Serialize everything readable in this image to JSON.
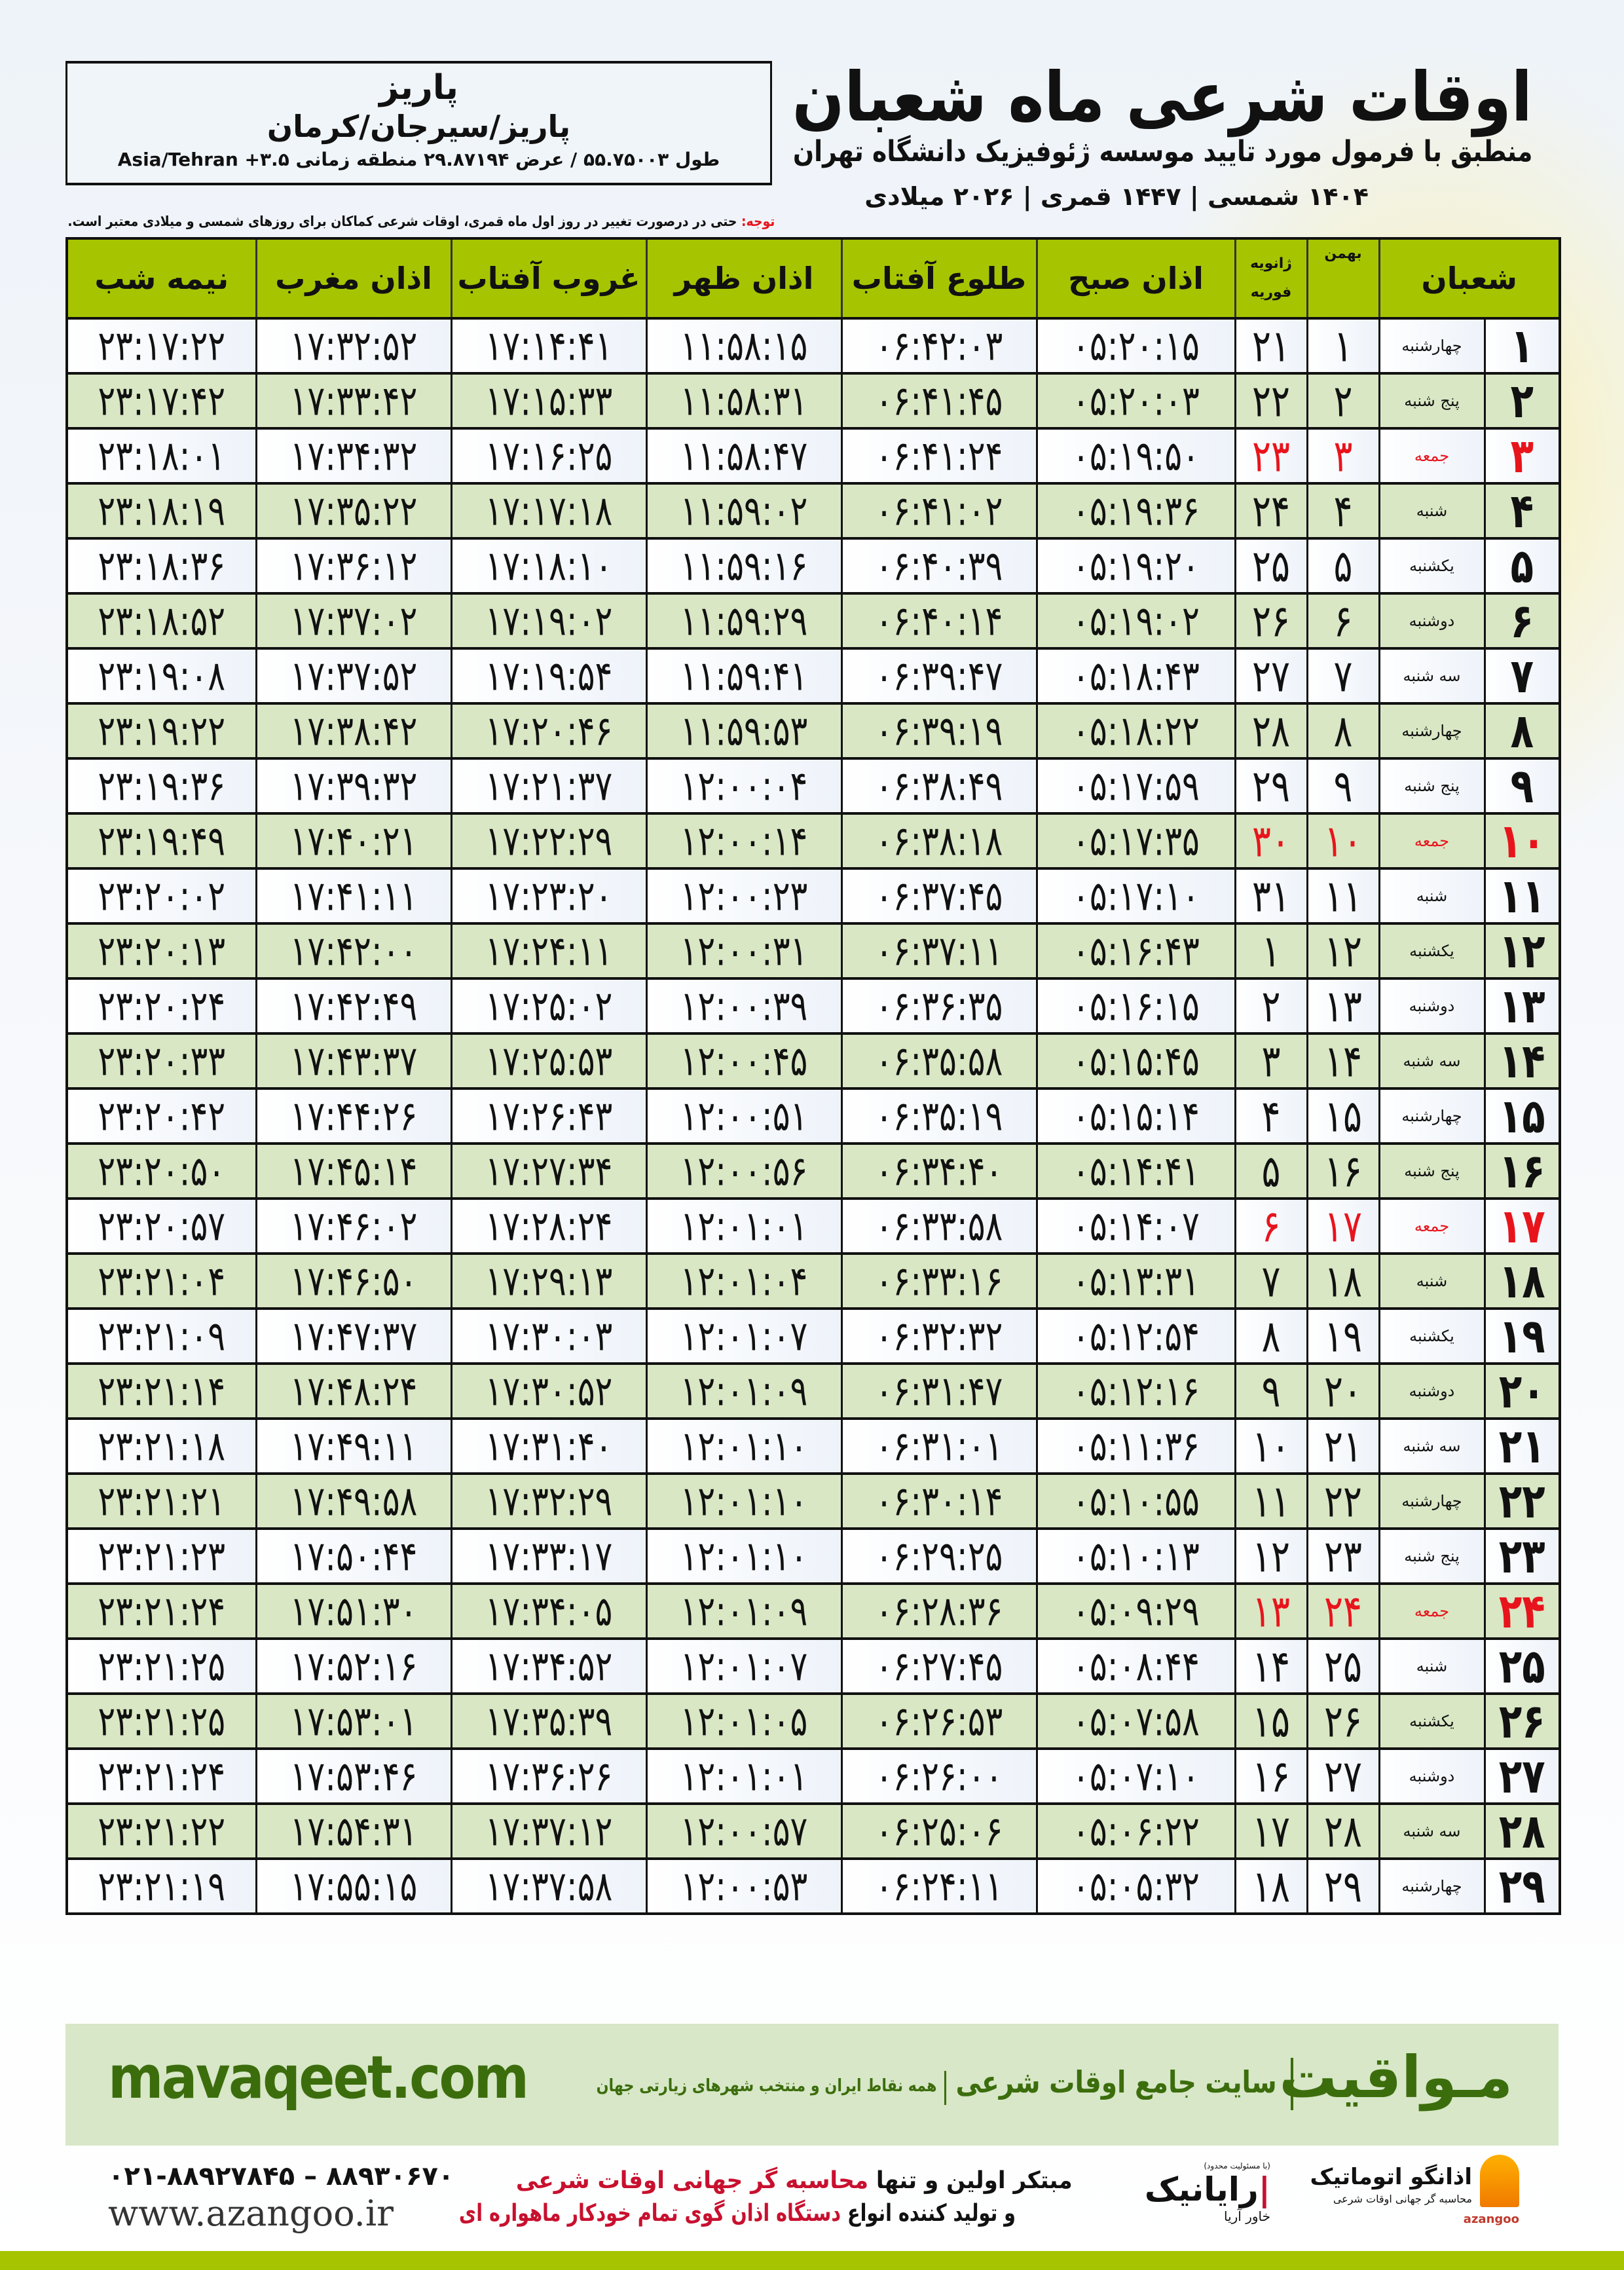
{
  "header": {
    "title": "اوقات شرعی ماه شعبان",
    "subtitle": "منطبق با فرمول مورد تایید موسسه ژئوفیزیک دانشگاه تهران",
    "dates": "۱۴۰۴ شمسی | ۱۴۴۷ قمری | ۲۰۲۶ میلادی"
  },
  "location": {
    "city": "پاریز",
    "region": "پاریز/سیرجان/کرمان",
    "coords": "طول ۵۵.۷۵۰۰۳ / عرض ۲۹.۸۷۱۹۴ منطقه زمانی ۳.۵+ Asia/Tehran"
  },
  "note": {
    "label": "توجه:",
    "text": " حتی در درصورت تغییر در روز اول ماه قمری، اوقات شرعی کماکان برای روزهای شمسی و میلادی معتبر است."
  },
  "colors": {
    "header_green": "#a6c500",
    "row_green": "#d9e7c4",
    "friday_red": "#e8141c",
    "brand_green": "#3c6d0d"
  },
  "table": {
    "friday_label": "جمعه",
    "headers": {
      "shaban": "شعبان",
      "bahman": "بهمن",
      "january": "ژانویه",
      "february": "فوریه",
      "fajr": "اذان صبح",
      "sunrise": "طلوع آفتاب",
      "dhuhr": "اذان ظهر",
      "sunset": "غروب آفتاب",
      "maghrib": "اذان مغرب",
      "midnight": "نیمه شب"
    },
    "rows": [
      [
        "۱",
        "چهارشنبه",
        "۱",
        "۲۱",
        "۰۵:۲۰:۱۵",
        "۰۶:۴۲:۰۳",
        "۱۱:۵۸:۱۵",
        "۱۷:۱۴:۴۱",
        "۱۷:۳۲:۵۲",
        "۲۳:۱۷:۲۲"
      ],
      [
        "۲",
        "پنج شنبه",
        "۲",
        "۲۲",
        "۰۵:۲۰:۰۳",
        "۰۶:۴۱:۴۵",
        "۱۱:۵۸:۳۱",
        "۱۷:۱۵:۳۳",
        "۱۷:۳۳:۴۲",
        "۲۳:۱۷:۴۲"
      ],
      [
        "۳",
        "جمعه",
        "۳",
        "۲۳",
        "۰۵:۱۹:۵۰",
        "۰۶:۴۱:۲۴",
        "۱۱:۵۸:۴۷",
        "۱۷:۱۶:۲۵",
        "۱۷:۳۴:۳۲",
        "۲۳:۱۸:۰۱"
      ],
      [
        "۴",
        "شنبه",
        "۴",
        "۲۴",
        "۰۵:۱۹:۳۶",
        "۰۶:۴۱:۰۲",
        "۱۱:۵۹:۰۲",
        "۱۷:۱۷:۱۸",
        "۱۷:۳۵:۲۲",
        "۲۳:۱۸:۱۹"
      ],
      [
        "۵",
        "یکشنبه",
        "۵",
        "۲۵",
        "۰۵:۱۹:۲۰",
        "۰۶:۴۰:۳۹",
        "۱۱:۵۹:۱۶",
        "۱۷:۱۸:۱۰",
        "۱۷:۳۶:۱۲",
        "۲۳:۱۸:۳۶"
      ],
      [
        "۶",
        "دوشنبه",
        "۶",
        "۲۶",
        "۰۵:۱۹:۰۲",
        "۰۶:۴۰:۱۴",
        "۱۱:۵۹:۲۹",
        "۱۷:۱۹:۰۲",
        "۱۷:۳۷:۰۲",
        "۲۳:۱۸:۵۲"
      ],
      [
        "۷",
        "سه شنبه",
        "۷",
        "۲۷",
        "۰۵:۱۸:۴۳",
        "۰۶:۳۹:۴۷",
        "۱۱:۵۹:۴۱",
        "۱۷:۱۹:۵۴",
        "۱۷:۳۷:۵۲",
        "۲۳:۱۹:۰۸"
      ],
      [
        "۸",
        "چهارشنبه",
        "۸",
        "۲۸",
        "۰۵:۱۸:۲۲",
        "۰۶:۳۹:۱۹",
        "۱۱:۵۹:۵۳",
        "۱۷:۲۰:۴۶",
        "۱۷:۳۸:۴۲",
        "۲۳:۱۹:۲۲"
      ],
      [
        "۹",
        "پنج شنبه",
        "۹",
        "۲۹",
        "۰۵:۱۷:۵۹",
        "۰۶:۳۸:۴۹",
        "۱۲:۰۰:۰۴",
        "۱۷:۲۱:۳۷",
        "۱۷:۳۹:۳۲",
        "۲۳:۱۹:۳۶"
      ],
      [
        "۱۰",
        "جمعه",
        "۱۰",
        "۳۰",
        "۰۵:۱۷:۳۵",
        "۰۶:۳۸:۱۸",
        "۱۲:۰۰:۱۴",
        "۱۷:۲۲:۲۹",
        "۱۷:۴۰:۲۱",
        "۲۳:۱۹:۴۹"
      ],
      [
        "۱۱",
        "شنبه",
        "۱۱",
        "۳۱",
        "۰۵:۱۷:۱۰",
        "۰۶:۳۷:۴۵",
        "۱۲:۰۰:۲۳",
        "۱۷:۲۳:۲۰",
        "۱۷:۴۱:۱۱",
        "۲۳:۲۰:۰۲"
      ],
      [
        "۱۲",
        "یکشنبه",
        "۱۲",
        "۱",
        "۰۵:۱۶:۴۳",
        "۰۶:۳۷:۱۱",
        "۱۲:۰۰:۳۱",
        "۱۷:۲۴:۱۱",
        "۱۷:۴۲:۰۰",
        "۲۳:۲۰:۱۳"
      ],
      [
        "۱۳",
        "دوشنبه",
        "۱۳",
        "۲",
        "۰۵:۱۶:۱۵",
        "۰۶:۳۶:۳۵",
        "۱۲:۰۰:۳۹",
        "۱۷:۲۵:۰۲",
        "۱۷:۴۲:۴۹",
        "۲۳:۲۰:۲۴"
      ],
      [
        "۱۴",
        "سه شنبه",
        "۱۴",
        "۳",
        "۰۵:۱۵:۴۵",
        "۰۶:۳۵:۵۸",
        "۱۲:۰۰:۴۵",
        "۱۷:۲۵:۵۳",
        "۱۷:۴۳:۳۷",
        "۲۳:۲۰:۳۳"
      ],
      [
        "۱۵",
        "چهارشنبه",
        "۱۵",
        "۴",
        "۰۵:۱۵:۱۴",
        "۰۶:۳۵:۱۹",
        "۱۲:۰۰:۵۱",
        "۱۷:۲۶:۴۳",
        "۱۷:۴۴:۲۶",
        "۲۳:۲۰:۴۲"
      ],
      [
        "۱۶",
        "پنج شنبه",
        "۱۶",
        "۵",
        "۰۵:۱۴:۴۱",
        "۰۶:۳۴:۴۰",
        "۱۲:۰۰:۵۶",
        "۱۷:۲۷:۳۴",
        "۱۷:۴۵:۱۴",
        "۲۳:۲۰:۵۰"
      ],
      [
        "۱۷",
        "جمعه",
        "۱۷",
        "۶",
        "۰۵:۱۴:۰۷",
        "۰۶:۳۳:۵۸",
        "۱۲:۰۱:۰۱",
        "۱۷:۲۸:۲۴",
        "۱۷:۴۶:۰۲",
        "۲۳:۲۰:۵۷"
      ],
      [
        "۱۸",
        "شنبه",
        "۱۸",
        "۷",
        "۰۵:۱۳:۳۱",
        "۰۶:۳۳:۱۶",
        "۱۲:۰۱:۰۴",
        "۱۷:۲۹:۱۳",
        "۱۷:۴۶:۵۰",
        "۲۳:۲۱:۰۴"
      ],
      [
        "۱۹",
        "یکشنبه",
        "۱۹",
        "۸",
        "۰۵:۱۲:۵۴",
        "۰۶:۳۲:۳۲",
        "۱۲:۰۱:۰۷",
        "۱۷:۳۰:۰۳",
        "۱۷:۴۷:۳۷",
        "۲۳:۲۱:۰۹"
      ],
      [
        "۲۰",
        "دوشنبه",
        "۲۰",
        "۹",
        "۰۵:۱۲:۱۶",
        "۰۶:۳۱:۴۷",
        "۱۲:۰۱:۰۹",
        "۱۷:۳۰:۵۲",
        "۱۷:۴۸:۲۴",
        "۲۳:۲۱:۱۴"
      ],
      [
        "۲۱",
        "سه شنبه",
        "۲۱",
        "۱۰",
        "۰۵:۱۱:۳۶",
        "۰۶:۳۱:۰۱",
        "۱۲:۰۱:۱۰",
        "۱۷:۳۱:۴۰",
        "۱۷:۴۹:۱۱",
        "۲۳:۲۱:۱۸"
      ],
      [
        "۲۲",
        "چهارشنبه",
        "۲۲",
        "۱۱",
        "۰۵:۱۰:۵۵",
        "۰۶:۳۰:۱۴",
        "۱۲:۰۱:۱۰",
        "۱۷:۳۲:۲۹",
        "۱۷:۴۹:۵۸",
        "۲۳:۲۱:۲۱"
      ],
      [
        "۲۳",
        "پنج شنبه",
        "۲۳",
        "۱۲",
        "۰۵:۱۰:۱۳",
        "۰۶:۲۹:۲۵",
        "۱۲:۰۱:۱۰",
        "۱۷:۳۳:۱۷",
        "۱۷:۵۰:۴۴",
        "۲۳:۲۱:۲۳"
      ],
      [
        "۲۴",
        "جمعه",
        "۲۴",
        "۱۳",
        "۰۵:۰۹:۲۹",
        "۰۶:۲۸:۳۶",
        "۱۲:۰۱:۰۹",
        "۱۷:۳۴:۰۵",
        "۱۷:۵۱:۳۰",
        "۲۳:۲۱:۲۴"
      ],
      [
        "۲۵",
        "شنبه",
        "۲۵",
        "۱۴",
        "۰۵:۰۸:۴۴",
        "۰۶:۲۷:۴۵",
        "۱۲:۰۱:۰۷",
        "۱۷:۳۴:۵۲",
        "۱۷:۵۲:۱۶",
        "۲۳:۲۱:۲۵"
      ],
      [
        "۲۶",
        "یکشنبه",
        "۲۶",
        "۱۵",
        "۰۵:۰۷:۵۸",
        "۰۶:۲۶:۵۳",
        "۱۲:۰۱:۰۵",
        "۱۷:۳۵:۳۹",
        "۱۷:۵۳:۰۱",
        "۲۳:۲۱:۲۵"
      ],
      [
        "۲۷",
        "دوشنبه",
        "۲۷",
        "۱۶",
        "۰۵:۰۷:۱۰",
        "۰۶:۲۶:۰۰",
        "۱۲:۰۱:۰۱",
        "۱۷:۳۶:۲۶",
        "۱۷:۵۳:۴۶",
        "۲۳:۲۱:۲۴"
      ],
      [
        "۲۸",
        "سه شنبه",
        "۲۸",
        "۱۷",
        "۰۵:۰۶:۲۲",
        "۰۶:۲۵:۰۶",
        "۱۲:۰۰:۵۷",
        "۱۷:۳۷:۱۲",
        "۱۷:۵۴:۳۱",
        "۲۳:۲۱:۲۲"
      ],
      [
        "۲۹",
        "چهارشنبه",
        "۲۹",
        "۱۸",
        "۰۵:۰۵:۳۲",
        "۰۶:۲۴:۱۱",
        "۱۲:۰۰:۵۳",
        "۱۷:۳۷:۵۸",
        "۱۷:۵۵:۱۵",
        "۲۳:۲۱:۱۹"
      ]
    ]
  },
  "footer": {
    "logo": "مـواقیت",
    "site_desc": "سایت جامع اوقات شرعی",
    "tagline": "همه نقاط ایران و منتخب شهرهای زیارتی جهان",
    "url": "mavaqeet.com",
    "phone": "۰۲۱-۸۸۹۲۷۸۴۵ – ۸۸۹۳۰۶۷۰",
    "web": "www.azangoo.ir",
    "promo1_a": "مبتکر اولین و تنها ",
    "promo1_b": "محاسبه گر جهانی اوقات شرعی",
    "promo2_a": "و تولید کننده انواع ",
    "promo2_b": "دستگاه اذان گوی تمام خودکار ماهواره ای",
    "rayanik_ltd": "(با مسئولیت محدود)",
    "rayanik_name": "رایانیک",
    "rayanik_sub": "خاور آریا",
    "azangoo_name": "اذانگو اتوماتیک",
    "azangoo_sub": "محاسبه گر جهانی اوقات شرعی",
    "azangoo_en": "azangoo"
  }
}
